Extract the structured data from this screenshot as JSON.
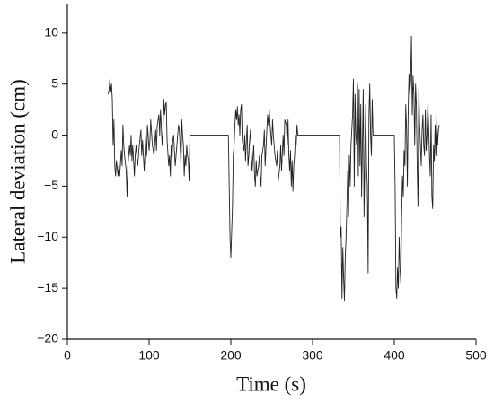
{
  "chart_data": {
    "type": "line",
    "xlabel": "Time (s)",
    "ylabel": "Lateral deviation (cm)",
    "xlim": [
      0,
      500
    ],
    "ylim": [
      -20,
      12.8
    ],
    "xticks": [
      0,
      100,
      200,
      300,
      400,
      500
    ],
    "yticks": [
      {
        "value": -20,
        "label": "−20"
      },
      {
        "value": -15,
        "label": "−15"
      },
      {
        "value": -10,
        "label": "−10"
      },
      {
        "value": -5,
        "label": "−5"
      },
      0,
      5,
      10
    ],
    "color": "#222222",
    "x": [
      50,
      51,
      52,
      53,
      54,
      55,
      56,
      57,
      58,
      59,
      60,
      62,
      63,
      64,
      66,
      67,
      68,
      69,
      70,
      72,
      73,
      74,
      76,
      77,
      78,
      79,
      80,
      82,
      83,
      84,
      86,
      88,
      90,
      91,
      92,
      94,
      96,
      97,
      98,
      100,
      101,
      102,
      104,
      106,
      108,
      109,
      110,
      112,
      113,
      114,
      116,
      117,
      118,
      119,
      120,
      121,
      122,
      124,
      125,
      126,
      127,
      128,
      129,
      130,
      132,
      133,
      134,
      136,
      137,
      138,
      139,
      140,
      141,
      142,
      143,
      144,
      145,
      146,
      147,
      148,
      149,
      150,
      197,
      198,
      199,
      200,
      201,
      202,
      203,
      204,
      205,
      206,
      207,
      208,
      209,
      210,
      211,
      212,
      213,
      214,
      216,
      217,
      218,
      219,
      220,
      221,
      222,
      223,
      224,
      225,
      226,
      228,
      229,
      230,
      231,
      232,
      234,
      235,
      236,
      237,
      238,
      240,
      241,
      242,
      244,
      245,
      246,
      247,
      248,
      250,
      251,
      252,
      254,
      256,
      257,
      258,
      260,
      261,
      262,
      264,
      265,
      266,
      268,
      269,
      270,
      271,
      272,
      273,
      274,
      275,
      276,
      277,
      278,
      279,
      280,
      281,
      282,
      333,
      334,
      335,
      336,
      337,
      338,
      339,
      340,
      341,
      342,
      343,
      344,
      345,
      346,
      347,
      348,
      349,
      350,
      351,
      352,
      353,
      354,
      355,
      356,
      357,
      358,
      359,
      360,
      361,
      362,
      363,
      364,
      365,
      366,
      367,
      368,
      369,
      370,
      371,
      372,
      373,
      374,
      375,
      400,
      401,
      402,
      403,
      404,
      405,
      406,
      407,
      408,
      409,
      410,
      411,
      412,
      413,
      414,
      415,
      416,
      417,
      418,
      419,
      420,
      421,
      422,
      423,
      424,
      425,
      426,
      427,
      428,
      429,
      430,
      431,
      432,
      433,
      434,
      435,
      436,
      437,
      438,
      439,
      440,
      441,
      442,
      443,
      444,
      445,
      446,
      447,
      448,
      449,
      450,
      451,
      452,
      453,
      454,
      455
    ],
    "values": [
      4,
      4.5,
      5.5,
      4.2,
      5,
      3.5,
      -1,
      1.5,
      -3,
      -4,
      -2.5,
      -4,
      -3,
      -4,
      -1.5,
      -3,
      1,
      -1,
      -2,
      -3.5,
      -6,
      -3,
      -1,
      -2,
      0,
      -2.5,
      -1,
      -4,
      -2,
      -1,
      -3,
      -1,
      0.5,
      -2,
      -0.5,
      -3.5,
      0,
      -2,
      1,
      -1.5,
      -0.5,
      1.5,
      -1,
      -2,
      0.5,
      -1.5,
      1,
      2,
      0,
      2.5,
      -1,
      0.5,
      3.5,
      2,
      3,
      3.2,
      -0.5,
      -3,
      -2,
      -4,
      -1,
      -2.5,
      -0.5,
      0,
      -3,
      -2,
      -1,
      1,
      0.5,
      -1,
      -3,
      1.5,
      0,
      -1,
      -4,
      -2,
      -3,
      -1,
      -2,
      -2.5,
      -4.5,
      0,
      0,
      -5,
      -10,
      -12,
      -9.5,
      -7,
      -2,
      -1,
      1,
      2.5,
      1.5,
      2.8,
      1,
      2,
      0,
      2.5,
      3,
      -0.5,
      -1.5,
      0,
      -2.5,
      -0.5,
      1,
      -3,
      -2,
      -0.5,
      0.5,
      -2,
      -3.5,
      -1,
      -4,
      -5,
      -2.5,
      -4,
      -3,
      -2,
      -4,
      -5,
      -2,
      -1,
      0.5,
      -3,
      0.5,
      2,
      1,
      2.5,
      1,
      -1,
      1.5,
      0,
      -2,
      -3,
      -1.5,
      -4.5,
      -3,
      -1,
      -3.5,
      0,
      -2,
      1.5,
      1,
      -1,
      1.5,
      -2,
      -3.5,
      -1.5,
      -5,
      -2.5,
      -5.5,
      -3,
      -2,
      0,
      -1,
      1,
      0,
      0,
      -10,
      -9,
      -16,
      -11,
      -14,
      -16.2,
      -12,
      -10,
      -7,
      -3.5,
      -8,
      -2,
      -5,
      -1,
      0.5,
      2,
      5.5,
      -5,
      4,
      0,
      -1,
      5,
      -4,
      4.5,
      -3,
      3,
      -6,
      -1,
      4.5,
      -8,
      -2,
      3,
      -3,
      -5,
      -13.5,
      2,
      5,
      0,
      -2,
      3.5,
      0,
      0,
      0,
      -5,
      -15,
      -16,
      -13,
      -15,
      -10,
      -13,
      -14.5,
      -8,
      -4,
      -6,
      -1.5,
      -3,
      3,
      0.5,
      -5,
      2.5,
      6,
      4,
      5.5,
      9.7,
      2,
      5.8,
      4,
      -1,
      5,
      3,
      -3,
      -7,
      4.5,
      1,
      -1,
      -3,
      0.5,
      2,
      -1,
      -2,
      2.5,
      -1.5,
      0,
      3,
      1,
      -2,
      -4,
      2,
      -6,
      -7.2,
      -1,
      -2.5,
      1,
      -2,
      1.8,
      -1,
      0.5,
      1
    ]
  }
}
